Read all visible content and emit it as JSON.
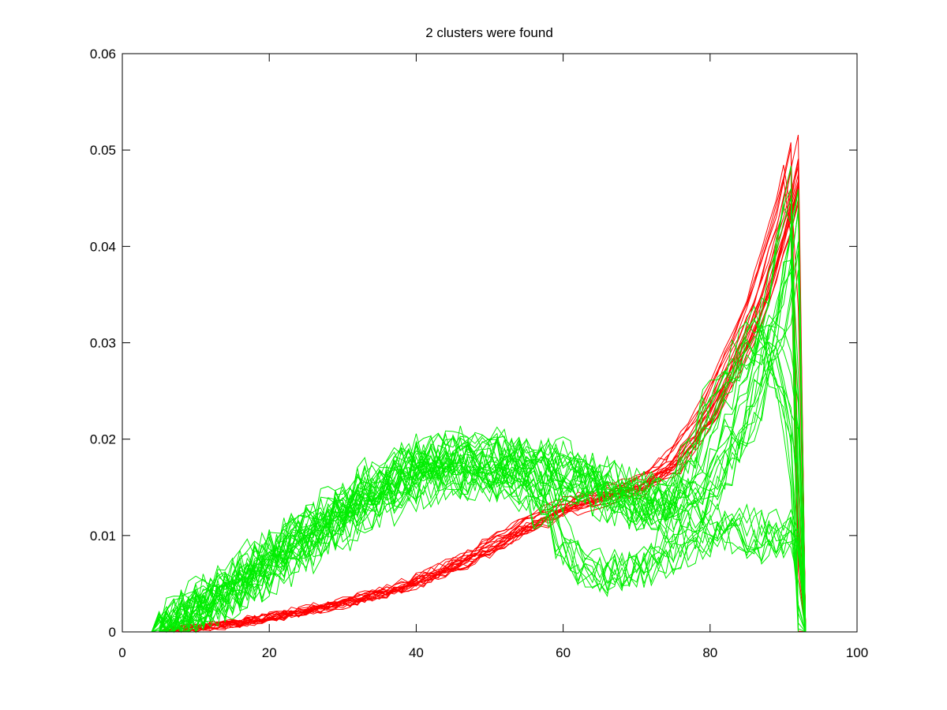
{
  "chart_data": {
    "type": "line",
    "title": "2 clusters were found",
    "xlabel": "",
    "ylabel": "",
    "xlim": [
      0,
      100
    ],
    "ylim": [
      0,
      0.06
    ],
    "xticks": [
      "0",
      "20",
      "40",
      "60",
      "80",
      "100"
    ],
    "yticks": [
      "0",
      "0.01",
      "0.02",
      "0.03",
      "0.04",
      "0.05",
      "0.06"
    ],
    "grid": false,
    "legend": "none",
    "series": [
      {
        "color": "#ff0000",
        "line_count": 20,
        "x": [
          0,
          6,
          10,
          15,
          20,
          25,
          30,
          35,
          40,
          45,
          50,
          55,
          60,
          65,
          70,
          75,
          80,
          83,
          86,
          88,
          90,
          91,
          92,
          93,
          100
        ],
        "y": [
          0,
          0,
          0.0005,
          0.0008,
          0.0015,
          0.0022,
          0.003,
          0.004,
          0.0052,
          0.0068,
          0.0088,
          0.011,
          0.0128,
          0.014,
          0.015,
          0.0175,
          0.023,
          0.028,
          0.033,
          0.038,
          0.043,
          0.046,
          0.05,
          0,
          0
        ]
      },
      {
        "color": "#00ee00",
        "line_count": 14,
        "x": [
          0,
          5,
          10,
          15,
          20,
          25,
          30,
          35,
          40,
          45,
          50,
          55,
          60,
          65,
          70,
          75,
          80,
          85,
          88,
          90,
          91,
          92,
          93,
          100
        ],
        "y": [
          0,
          0,
          0.002,
          0.004,
          0.006,
          0.009,
          0.0115,
          0.014,
          0.016,
          0.017,
          0.0168,
          0.0165,
          0.0158,
          0.0148,
          0.0138,
          0.0128,
          0.0145,
          0.022,
          0.03,
          0.036,
          0.04,
          0.045,
          0,
          0
        ]
      },
      {
        "color": "#00ee00",
        "line_count": 10,
        "x": [
          0,
          5,
          10,
          15,
          20,
          25,
          30,
          35,
          40,
          45,
          50,
          55,
          60,
          65,
          70,
          75,
          80,
          85,
          88,
          90,
          91,
          92,
          93,
          100
        ],
        "y": [
          0,
          0,
          0.0035,
          0.0055,
          0.0085,
          0.011,
          0.013,
          0.0155,
          0.0175,
          0.018,
          0.0182,
          0.0178,
          0.017,
          0.0155,
          0.0135,
          0.0125,
          0.022,
          0.029,
          0.031,
          0.026,
          0.022,
          0.018,
          0,
          0
        ]
      },
      {
        "color": "#00ee00",
        "line_count": 10,
        "x": [
          0,
          5,
          10,
          15,
          20,
          25,
          30,
          35,
          40,
          45,
          50,
          55,
          58,
          60,
          65,
          70,
          75,
          80,
          85,
          88,
          90,
          92,
          93,
          100
        ],
        "y": [
          0,
          0,
          0.0025,
          0.0045,
          0.0075,
          0.01,
          0.0125,
          0.015,
          0.0168,
          0.0172,
          0.0168,
          0.0155,
          0.012,
          0.008,
          0.006,
          0.0068,
          0.009,
          0.0105,
          0.0105,
          0.0095,
          0.0102,
          0.011,
          0,
          0
        ]
      }
    ]
  }
}
